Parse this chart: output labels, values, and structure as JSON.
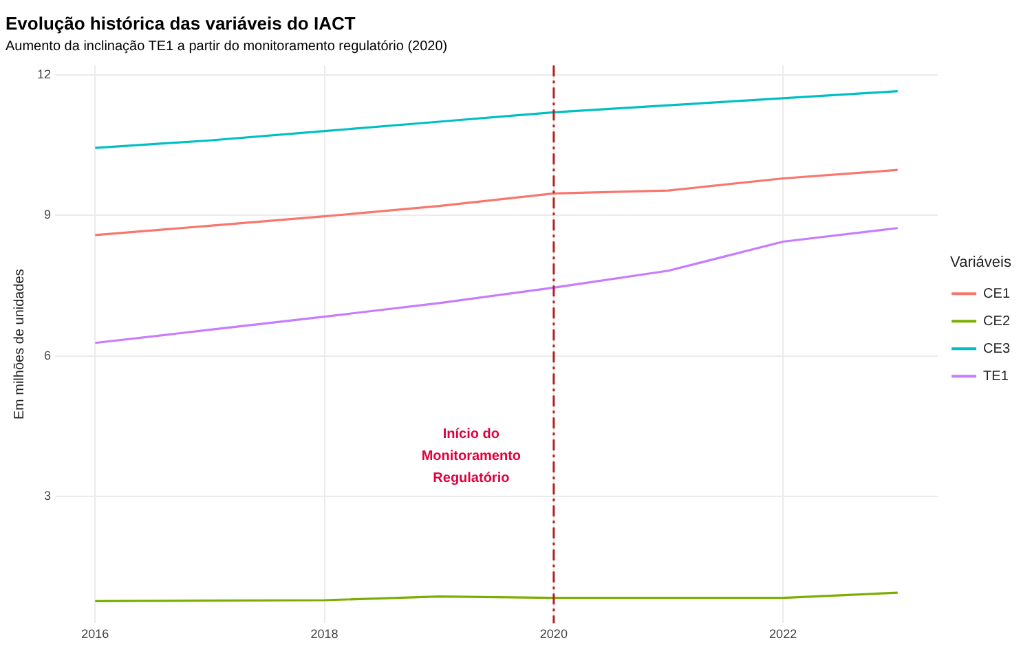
{
  "chart_data": {
    "type": "line",
    "title": "Evolução histórica das variáveis do IACT",
    "subtitle": "Aumento da inclinação TE1 a partir do monitoramento regulatório (2020)",
    "ylabel": "Em milhões de unidades",
    "legend_title": "Variáveis",
    "x": [
      2016,
      2017,
      2018,
      2019,
      2020,
      2021,
      2022,
      2023
    ],
    "series": [
      {
        "name": "CE1",
        "color": "#f8766d",
        "values": [
          8.58,
          8.78,
          8.98,
          9.2,
          9.47,
          9.53,
          9.79,
          9.97
        ]
      },
      {
        "name": "CE2",
        "color": "#7cae00",
        "values": [
          0.77,
          0.78,
          0.79,
          0.87,
          0.84,
          0.84,
          0.84,
          0.95
        ]
      },
      {
        "name": "CE3",
        "color": "#00bfc4",
        "values": [
          10.44,
          10.6,
          10.8,
          11.0,
          11.2,
          11.35,
          11.5,
          11.65
        ]
      },
      {
        "name": "TE1",
        "color": "#c77cff",
        "values": [
          6.28,
          6.56,
          6.84,
          7.13,
          7.46,
          7.82,
          8.44,
          8.73
        ]
      }
    ],
    "xlim": [
      2015.65,
      2023.35
    ],
    "xticks": [
      2016,
      2018,
      2020,
      2022
    ],
    "ylim": [
      0.3,
      12.2
    ],
    "yticks": [
      3,
      6,
      9,
      12
    ],
    "ref_lines": [
      {
        "axis": "x",
        "value": 2020,
        "label": "Início do\nMonitoramento\nRegulatório",
        "color": "#b22222",
        "line_style": "dashed"
      }
    ],
    "grid": true,
    "legend": "right",
    "marker": "none",
    "line_style": "solid"
  }
}
